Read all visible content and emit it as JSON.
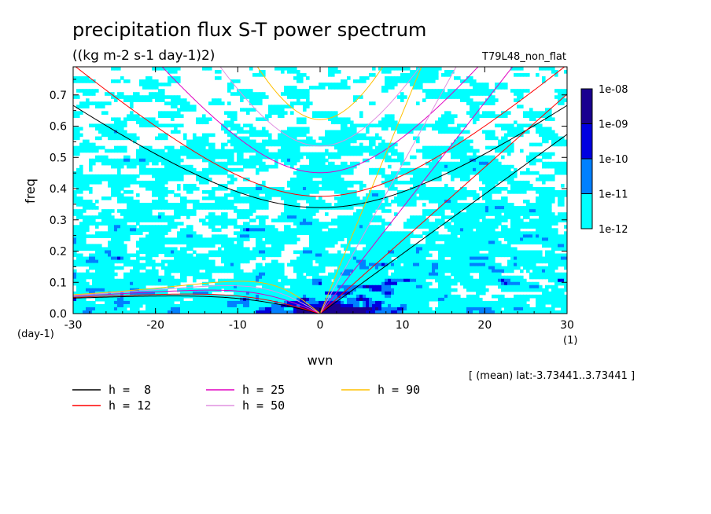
{
  "chart_data": {
    "type": "contour",
    "title": "precipitation flux S-T power spectrum",
    "subtitle": "((kg m-2 s-1 day-1)2)",
    "run_label": "T79L48_non_flat",
    "xlabel": "wvn",
    "xunit": "(1)",
    "ylabel": "freq",
    "yunit": "(day-1)",
    "xlim": [
      -30,
      30
    ],
    "ylim": [
      0,
      0.79
    ],
    "xticks": [
      -30,
      -20,
      -10,
      0,
      10,
      20,
      30
    ],
    "xtick_labels": [
      "-30",
      "-20",
      "-10",
      "0",
      "10",
      "20",
      "30"
    ],
    "yticks": [
      0.0,
      0.1,
      0.2,
      0.3,
      0.4,
      0.5,
      0.6,
      0.7
    ],
    "ytick_labels": [
      "0.0",
      "0.1",
      "0.2",
      "0.3",
      "0.4",
      "0.5",
      "0.6",
      "0.7"
    ],
    "averaging_note": "[ (mean) lat:-3.73441..3.73441 ]",
    "colorbar": {
      "levels": [
        "1e-12",
        "1e-11",
        "1e-10",
        "1e-09",
        "1e-08"
      ],
      "colors": [
        "#00ffff",
        "#0080ff",
        "#0000e0",
        "#1a0090"
      ]
    },
    "dispersion_curves": [
      {
        "label": "h =  8",
        "h": 8,
        "color": "#000000"
      },
      {
        "label": "h = 12",
        "h": 12,
        "color": "#ff0000"
      },
      {
        "label": "h = 25",
        "h": 25,
        "color": "#e000c0"
      },
      {
        "label": "h = 50",
        "h": 50,
        "color": "#e090e0"
      },
      {
        "label": "h = 90",
        "h": 90,
        "color": "#ffc000"
      }
    ]
  }
}
